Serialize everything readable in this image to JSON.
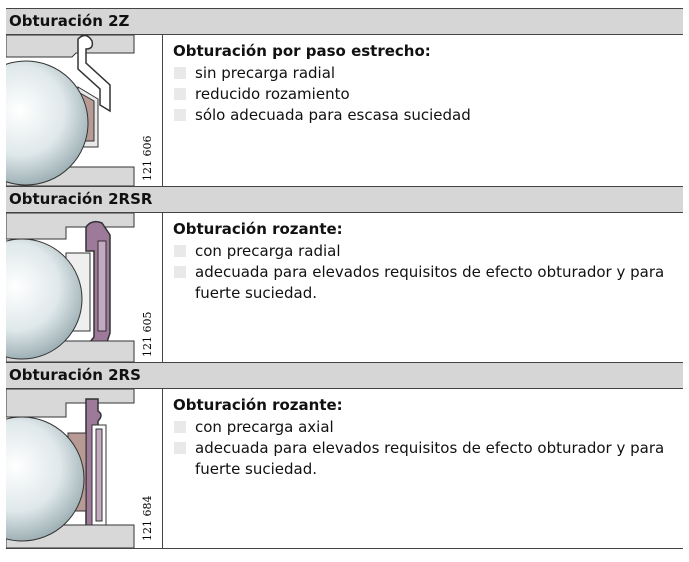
{
  "sections": [
    {
      "title": "Obturación 2Z",
      "image_id": "121 606",
      "heading": "Obturación por paso estrecho:",
      "items": [
        "sin precarga radial",
        "reducido rozamiento",
        "sólo adecuada para escasa suciedad"
      ]
    },
    {
      "title": "Obturación 2RSR",
      "image_id": "121 605",
      "heading": "Obturación rozante:",
      "items": [
        "con precarga radial",
        "adecuada para elevados requisitos de efecto obturador y para fuerte suciedad."
      ]
    },
    {
      "title": "Obturación 2RS",
      "image_id": "121 684",
      "heading": "Obturación rozante:",
      "items": [
        "con precarga axial",
        "adecuada para elevados requisitos de efecto obturador y para fuerte suciedad."
      ]
    }
  ]
}
